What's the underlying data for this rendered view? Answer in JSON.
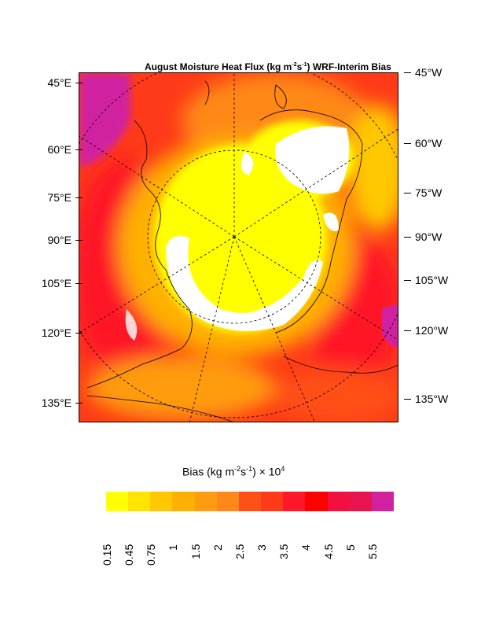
{
  "title": {
    "prefix": "August Moisture Heat Flux (kg m",
    "exp1": "-2",
    "mid": "s",
    "exp2": "-1",
    "suffix": ") WRF-Interim Bias"
  },
  "left_labels": [
    "45°E",
    "60°E",
    "75°E",
    "90°E",
    "105°E",
    "120°E",
    "135°E"
  ],
  "right_labels": [
    "45°W",
    "60°W",
    "75°W",
    "90°W",
    "105°W",
    "120°W",
    "135°W"
  ],
  "colorbar": {
    "title_prefix": "Bias (kg m",
    "exp1": "-2",
    "mid": "s",
    "exp2": "-1",
    "suffix": ") × 10",
    "exp3": "4",
    "labels": [
      "0.15",
      "0.45",
      "0.75",
      "1",
      "1.5",
      "2",
      "2.5",
      "3",
      "3.5",
      "4",
      "4.5",
      "5",
      "5.5"
    ],
    "colors": [
      "#ffff00",
      "#ffe400",
      "#ffc800",
      "#ffb000",
      "#ff9c10",
      "#ff8818",
      "#ff5018",
      "#ff3a18",
      "#ff1828",
      "#ff0000",
      "#f21040",
      "#e81450",
      "#d022a0"
    ]
  }
}
